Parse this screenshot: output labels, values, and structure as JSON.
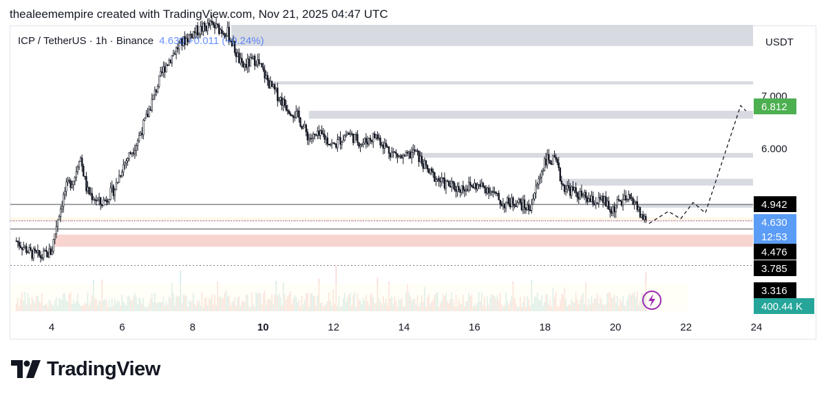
{
  "header": {
    "attribution": "thealeemempire created with TradingView.com, Nov 21, 2025 04:47 UTC"
  },
  "legend": {
    "symbol": "ICP / TetherUS · 1h · Binance",
    "values": "4.630  +0.011  (+0.24%)"
  },
  "currency": "USDT",
  "brand": {
    "name": "TradingView"
  },
  "colors": {
    "up": "#131722",
    "down": "#131722",
    "zone": "#d1d4dc",
    "red_zone": "#f7cdc8",
    "current": "#5b9cf6",
    "target": "#4caf50",
    "label_dark": "#000000",
    "volume_label": "#26a69a"
  },
  "chart_data": {
    "type": "candlestick",
    "x_ticks": [
      {
        "label": "4",
        "day": 4
      },
      {
        "label": "6",
        "day": 6
      },
      {
        "label": "8",
        "day": 8
      },
      {
        "label": "10",
        "day": 10,
        "bold": true
      },
      {
        "label": "12",
        "day": 12
      },
      {
        "label": "14",
        "day": 14
      },
      {
        "label": "16",
        "day": 16
      },
      {
        "label": "18",
        "day": 18
      },
      {
        "label": "20",
        "day": 20
      },
      {
        "label": "22",
        "day": 22
      },
      {
        "label": "24",
        "day": 24
      }
    ],
    "y_ticks": [
      7.0,
      6.0
    ],
    "y_tick_labels": [
      "7.000",
      "6.000"
    ],
    "price_labels": [
      {
        "label": "6.812",
        "value": 6.812,
        "style": "target"
      },
      {
        "label": "4.942",
        "value": 4.942,
        "style": "dark"
      },
      {
        "label": "4.630",
        "value": 4.63,
        "style": "current"
      },
      {
        "label": "12:53",
        "value": 4.6,
        "style": "current-sub"
      },
      {
        "label": "4.476",
        "value": 4.476,
        "style": "dark"
      },
      {
        "label": "3.785",
        "value": 3.785,
        "style": "dark"
      },
      {
        "label": "3.316",
        "value": 3.316,
        "style": "dark"
      },
      {
        "label": "400.44 K",
        "style": "volume"
      }
    ],
    "resistance_zones": [
      {
        "day_start": 9.1,
        "low": 7.95,
        "high": 8.35
      },
      {
        "day_start": 10.1,
        "low": 7.22,
        "high": 7.28
      },
      {
        "day_start": 11.3,
        "low": 6.57,
        "high": 6.72
      },
      {
        "day_start": 14.4,
        "low": 5.83,
        "high": 5.92
      },
      {
        "day_start": 18.5,
        "low": 5.3,
        "high": 5.43
      },
      {
        "day_start": 20.6,
        "low": 4.88,
        "high": 4.94
      }
    ],
    "support_zone": {
      "low": 4.14,
      "high": 4.37
    },
    "horizontal_lines": [
      4.942,
      4.63,
      4.476,
      3.785
    ],
    "projection": [
      {
        "day": 20.95,
        "price": 4.58
      },
      {
        "day": 21.5,
        "price": 4.81
      },
      {
        "day": 21.85,
        "price": 4.67
      },
      {
        "day": 22.2,
        "price": 4.98
      },
      {
        "day": 22.55,
        "price": 4.78
      },
      {
        "day": 23.55,
        "price": 6.82
      },
      {
        "day": 23.7,
        "price": 6.72
      }
    ],
    "price_path": [
      {
        "day": 3.0,
        "price": 4.25
      },
      {
        "day": 3.4,
        "price": 4.02
      },
      {
        "day": 3.7,
        "price": 3.95
      },
      {
        "day": 4.0,
        "price": 4.05
      },
      {
        "day": 4.15,
        "price": 4.62
      },
      {
        "day": 4.4,
        "price": 5.25
      },
      {
        "day": 4.65,
        "price": 5.45
      },
      {
        "day": 4.8,
        "price": 5.9
      },
      {
        "day": 5.0,
        "price": 5.2
      },
      {
        "day": 5.4,
        "price": 4.95
      },
      {
        "day": 5.8,
        "price": 5.25
      },
      {
        "day": 6.0,
        "price": 5.65
      },
      {
        "day": 6.4,
        "price": 6.1
      },
      {
        "day": 6.7,
        "price": 6.6
      },
      {
        "day": 7.0,
        "price": 7.2
      },
      {
        "day": 7.2,
        "price": 7.55
      },
      {
        "day": 7.6,
        "price": 7.95
      },
      {
        "day": 8.0,
        "price": 8.2
      },
      {
        "day": 8.5,
        "price": 8.35
      },
      {
        "day": 9.0,
        "price": 8.2
      },
      {
        "day": 9.4,
        "price": 7.55
      },
      {
        "day": 9.8,
        "price": 7.7
      },
      {
        "day": 10.2,
        "price": 7.2
      },
      {
        "day": 10.6,
        "price": 6.85
      },
      {
        "day": 11.0,
        "price": 6.6
      },
      {
        "day": 11.3,
        "price": 6.2
      },
      {
        "day": 11.7,
        "price": 6.25
      },
      {
        "day": 12.0,
        "price": 6.05
      },
      {
        "day": 12.4,
        "price": 6.3
      },
      {
        "day": 12.8,
        "price": 6.1
      },
      {
        "day": 13.2,
        "price": 6.25
      },
      {
        "day": 13.6,
        "price": 5.95
      },
      {
        "day": 14.0,
        "price": 5.8
      },
      {
        "day": 14.3,
        "price": 5.95
      },
      {
        "day": 14.7,
        "price": 5.55
      },
      {
        "day": 15.1,
        "price": 5.35
      },
      {
        "day": 15.5,
        "price": 5.25
      },
      {
        "day": 16.0,
        "price": 5.3
      },
      {
        "day": 16.4,
        "price": 5.25
      },
      {
        "day": 16.8,
        "price": 4.95
      },
      {
        "day": 17.2,
        "price": 5.0
      },
      {
        "day": 17.55,
        "price": 4.85
      },
      {
        "day": 17.8,
        "price": 5.35
      },
      {
        "day": 18.0,
        "price": 5.8
      },
      {
        "day": 18.3,
        "price": 5.75
      },
      {
        "day": 18.5,
        "price": 5.3
      },
      {
        "day": 18.9,
        "price": 5.15
      },
      {
        "day": 19.3,
        "price": 5.0
      },
      {
        "day": 19.7,
        "price": 5.0
      },
      {
        "day": 19.85,
        "price": 4.8
      },
      {
        "day": 20.1,
        "price": 4.98
      },
      {
        "day": 20.5,
        "price": 5.05
      },
      {
        "day": 20.7,
        "price": 4.75
      },
      {
        "day": 20.9,
        "price": 4.62
      }
    ]
  }
}
